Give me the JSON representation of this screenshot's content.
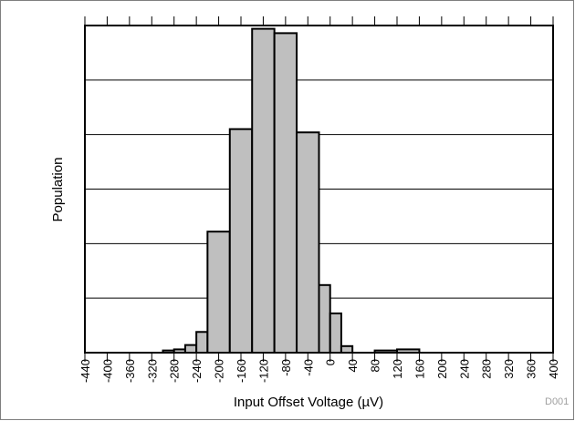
{
  "chart_data": {
    "type": "bar",
    "xlabel": "Input Offset Voltage (µV)",
    "ylabel": "Population",
    "figure_code": "D001",
    "x_ticks": [
      -440,
      -400,
      -360,
      -320,
      -280,
      -240,
      -200,
      -160,
      -120,
      -80,
      -40,
      0,
      40,
      80,
      120,
      160,
      200,
      240,
      280,
      320,
      360,
      400
    ],
    "xlim": [
      -440,
      400
    ],
    "ylim": [
      0,
      300
    ],
    "grid": true,
    "bin_width": 20,
    "bins": [
      {
        "x_start": -300,
        "x_end": -280,
        "value": 2
      },
      {
        "x_start": -280,
        "x_end": -260,
        "value": 3
      },
      {
        "x_start": -260,
        "x_end": -240,
        "value": 7
      },
      {
        "x_start": -240,
        "x_end": -220,
        "value": 19
      },
      {
        "x_start": -220,
        "x_end": -180,
        "value": 111
      },
      {
        "x_start": -180,
        "x_end": -140,
        "value": 205
      },
      {
        "x_start": -140,
        "x_end": -100,
        "value": 297
      },
      {
        "x_start": -100,
        "x_end": -60,
        "value": 293
      },
      {
        "x_start": -60,
        "x_end": -20,
        "value": 202
      },
      {
        "x_start": -20,
        "x_end": 0,
        "value": 62
      },
      {
        "x_start": 0,
        "x_end": 20,
        "value": 36
      },
      {
        "x_start": 20,
        "x_end": 40,
        "value": 6
      },
      {
        "x_start": 80,
        "x_end": 120,
        "value": 2
      },
      {
        "x_start": 120,
        "x_end": 160,
        "value": 3
      }
    ]
  }
}
